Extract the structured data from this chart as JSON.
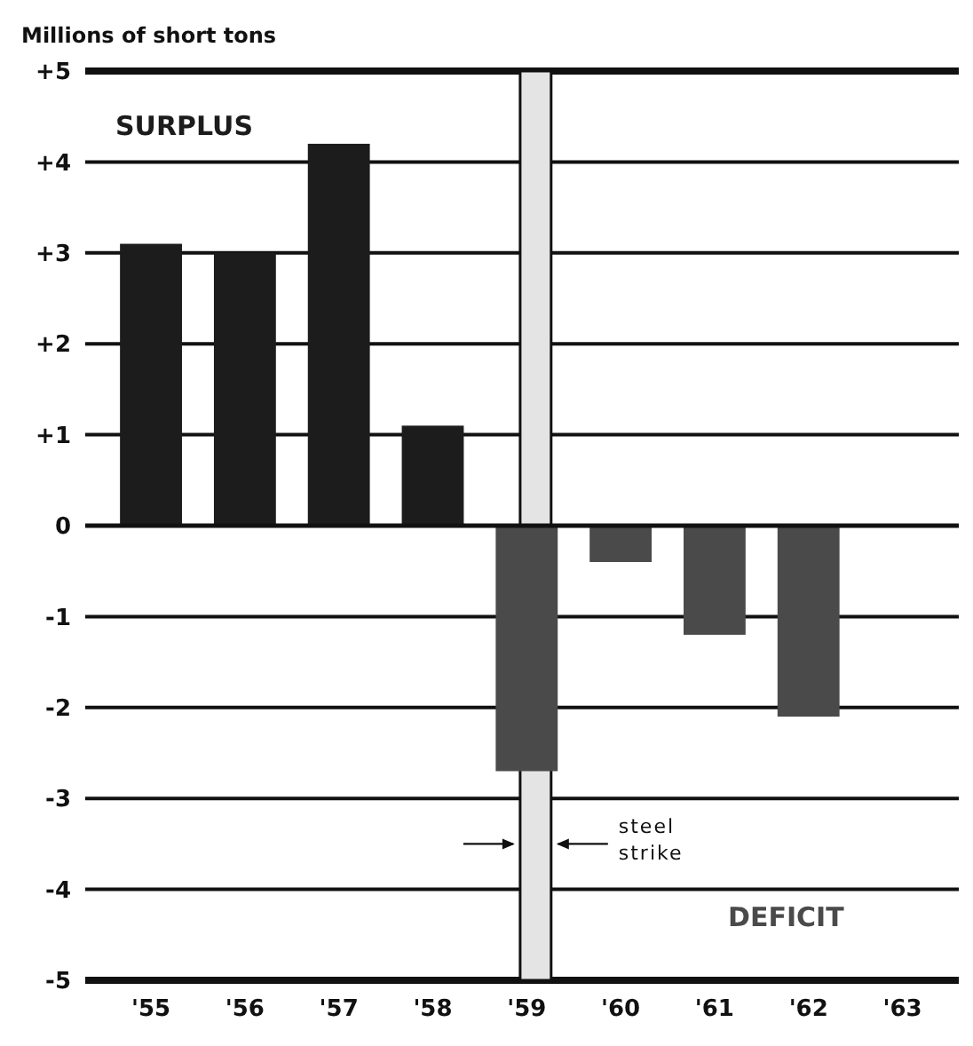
{
  "chart_data": {
    "type": "bar",
    "ylabel": "Millions of short tons",
    "x": [
      1955,
      1956,
      1957,
      1958,
      1959,
      1960,
      1961,
      1962
    ],
    "values": [
      3.1,
      3.0,
      4.2,
      1.1,
      -2.7,
      -0.4,
      -1.2,
      -2.1
    ],
    "colors": [
      "#1c1c1c",
      "#1c1c1c",
      "#1c1c1c",
      "#1c1c1c",
      "#4a4a4a",
      "#4a4a4a",
      "#4a4a4a",
      "#4a4a4a"
    ],
    "xlim": [
      1954.3,
      1963.6
    ],
    "xticks": [
      {
        "value": 1955,
        "label": "'55"
      },
      {
        "value": 1956,
        "label": "'56"
      },
      {
        "value": 1957,
        "label": "'57"
      },
      {
        "value": 1958,
        "label": "'58"
      },
      {
        "value": 1959,
        "label": "'59"
      },
      {
        "value": 1960,
        "label": "'60"
      },
      {
        "value": 1961,
        "label": "'61"
      },
      {
        "value": 1962,
        "label": "'62"
      },
      {
        "value": 1963,
        "label": "'63"
      }
    ],
    "ylim": [
      -5,
      5
    ],
    "yticks": [
      -5,
      -4,
      -3,
      -2,
      -1,
      0,
      {
        "value": 1,
        "label": "+1"
      },
      {
        "value": 2,
        "label": "+2"
      },
      {
        "value": 3,
        "label": "+3"
      },
      {
        "value": 4,
        "label": "+4"
      },
      {
        "value": 5,
        "label": "+5"
      }
    ],
    "grid": "y",
    "bands": [
      {
        "axis": "x",
        "from": 1958.93,
        "to": 1959.26,
        "label": "steel strike",
        "color": "#e4e4e4"
      }
    ],
    "annotations": [
      "SURPLUS",
      "DEFICIT"
    ]
  }
}
